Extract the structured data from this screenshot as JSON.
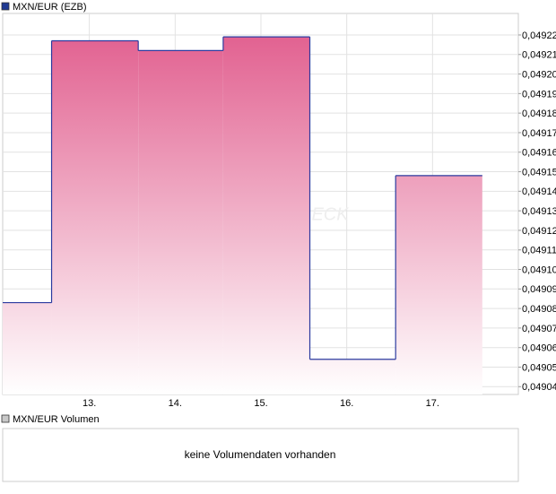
{
  "chart_data": {
    "type": "step-area",
    "title": "MXN/EUR (EZB)",
    "watermark": "ECK",
    "line_color": "#2b3a9f",
    "fill_color": "#e0588a",
    "legend_color": "#1f3a93",
    "x": [
      11.99,
      12.56,
      13.57,
      14.56,
      15.57,
      16.57
    ],
    "x_end": 17.58,
    "values": [
      0.049083,
      0.049217,
      0.049212,
      0.049219,
      0.049054,
      0.049148
    ],
    "xlim": [
      11.99,
      18.0
    ],
    "xticks": [
      {
        "value": 13,
        "label": "13."
      },
      {
        "value": 14,
        "label": "14."
      },
      {
        "value": 15,
        "label": "15."
      },
      {
        "value": 16,
        "label": "16."
      },
      {
        "value": 17,
        "label": "17."
      }
    ],
    "ylim": [
      0.049036,
      0.049231
    ],
    "yticks": [
      {
        "value": 0.04922,
        "label": "0,04922"
      },
      {
        "value": 0.04921,
        "label": "0,04921"
      },
      {
        "value": 0.0492,
        "label": "0,04920"
      },
      {
        "value": 0.04919,
        "label": "0,04919"
      },
      {
        "value": 0.04918,
        "label": "0,04918"
      },
      {
        "value": 0.04917,
        "label": "0,04917"
      },
      {
        "value": 0.04916,
        "label": "0,04916"
      },
      {
        "value": 0.04915,
        "label": "0,04915"
      },
      {
        "value": 0.04914,
        "label": "0,04914"
      },
      {
        "value": 0.04913,
        "label": "0,04913"
      },
      {
        "value": 0.04912,
        "label": "0,04912"
      },
      {
        "value": 0.04911,
        "label": "0,04911"
      },
      {
        "value": 0.0491,
        "label": "0,04910"
      },
      {
        "value": 0.04909,
        "label": "0,04909"
      },
      {
        "value": 0.04908,
        "label": "0,04908"
      },
      {
        "value": 0.04907,
        "label": "0,04907"
      },
      {
        "value": 0.04906,
        "label": "0,04906"
      },
      {
        "value": 0.04905,
        "label": "0,04905"
      },
      {
        "value": 0.04904,
        "label": "0,04904"
      }
    ],
    "grid": true,
    "volume_panel": {
      "title": "MXN/EUR Volumen",
      "message": "keine Volumendaten vorhanden",
      "legend_color": "#c8c8c8"
    }
  }
}
